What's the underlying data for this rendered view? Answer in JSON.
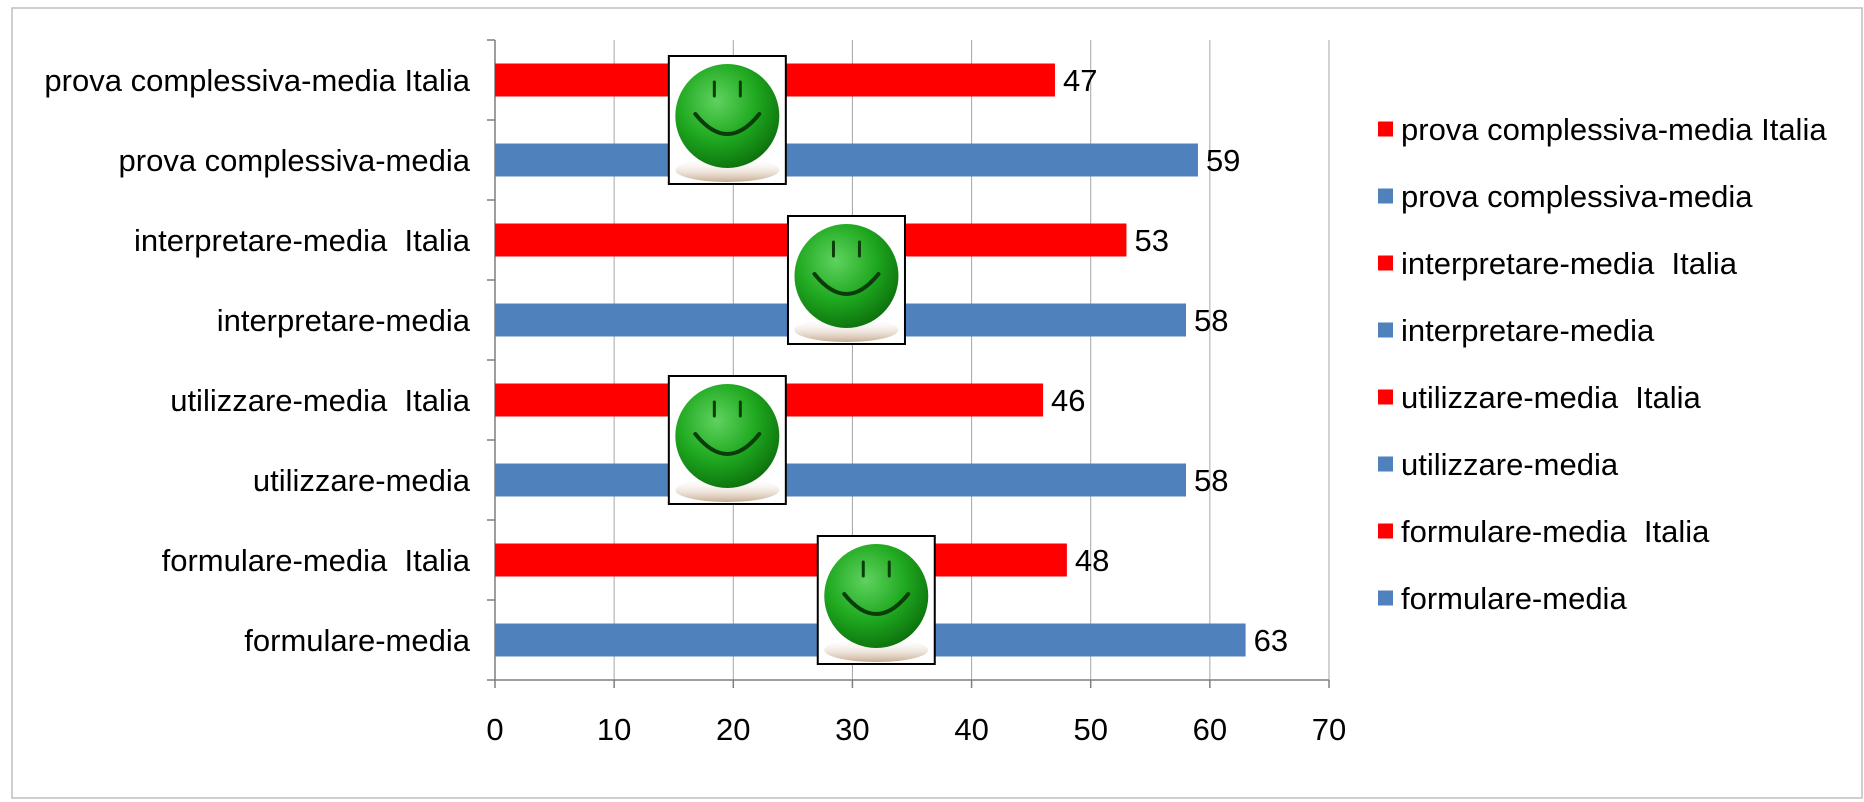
{
  "chart_data": {
    "type": "bar",
    "orientation": "horizontal",
    "categories": [
      "prova complessiva-media Italia",
      "prova complessiva-media",
      "interpretare-media  Italia",
      "interpretare-media",
      "utilizzare-media  Italia",
      "utilizzare-media",
      "formulare-media  Italia",
      "formulare-media"
    ],
    "values": [
      47,
      59,
      53,
      58,
      46,
      58,
      48,
      63
    ],
    "bar_colors": [
      "#ff0000",
      "#4f81bd",
      "#ff0000",
      "#4f81bd",
      "#ff0000",
      "#4f81bd",
      "#ff0000",
      "#4f81bd"
    ],
    "xlim": [
      0,
      70
    ],
    "xticks": [
      0,
      10,
      20,
      30,
      40,
      50,
      60,
      70
    ],
    "grid": "vertical",
    "data_labels": true,
    "legend": {
      "position": "right",
      "entries": [
        {
          "label": "prova complessiva-media Italia",
          "color": "#ff0000"
        },
        {
          "label": "prova complessiva-media",
          "color": "#4f81bd"
        },
        {
          "label": "interpretare-media  Italia",
          "color": "#ff0000"
        },
        {
          "label": "interpretare-media",
          "color": "#4f81bd"
        },
        {
          "label": "utilizzare-media  Italia",
          "color": "#ff0000"
        },
        {
          "label": "utilizzare-media",
          "color": "#4f81bd"
        },
        {
          "label": "formulare-media  Italia",
          "color": "#ff0000"
        },
        {
          "label": "formulare-media",
          "color": "#4f81bd"
        }
      ]
    },
    "annotations": [
      {
        "icon": "smiley-face-icon",
        "pair": 0,
        "x_center": 19.5
      },
      {
        "icon": "smiley-face-icon",
        "pair": 1,
        "x_center": 29.5
      },
      {
        "icon": "smiley-face-icon",
        "pair": 2,
        "x_center": 19.5
      },
      {
        "icon": "smiley-face-icon",
        "pair": 3,
        "x_center": 32.0
      }
    ]
  }
}
